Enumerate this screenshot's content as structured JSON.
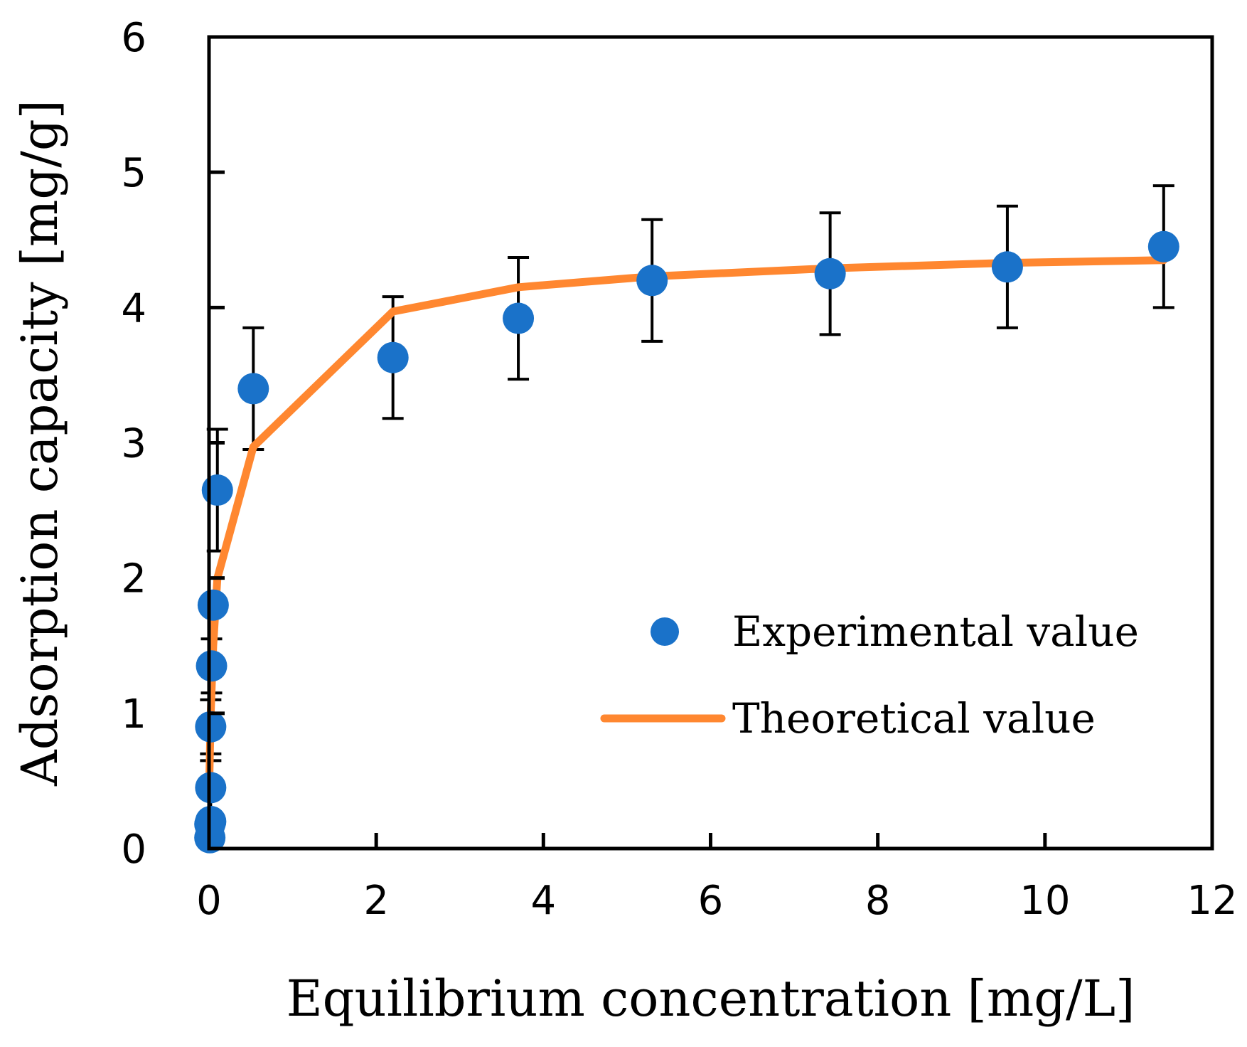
{
  "chart_data": {
    "type": "scatter",
    "title": "",
    "xlabel": "Equilibrium concentration [mg/L]",
    "ylabel": "Adsorption capacity [mg/g]",
    "xlim": [
      0,
      12
    ],
    "ylim": [
      0,
      6
    ],
    "x_ticks": [
      0,
      2,
      4,
      6,
      8,
      10,
      12
    ],
    "y_ticks": [
      0,
      1,
      2,
      3,
      4,
      5,
      6
    ],
    "grid": false,
    "legend_position": "center-right",
    "series": [
      {
        "name": "Experimental value",
        "kind": "scatter",
        "color": "#1a72c9",
        "x": [
          0.01,
          0.01,
          0.02,
          0.02,
          0.02,
          0.03,
          0.05,
          0.1,
          0.53,
          2.2,
          3.7,
          5.3,
          7.43,
          9.55,
          11.42
        ],
        "y": [
          0.08,
          0.18,
          0.2,
          0.45,
          0.9,
          1.35,
          1.8,
          2.65,
          3.4,
          3.63,
          3.92,
          4.2,
          4.25,
          4.3,
          4.45
        ],
        "error": [
          0,
          0,
          0,
          0.2,
          0.2,
          0.2,
          0,
          0.45,
          0.45,
          0.45,
          0.45,
          0.45,
          0.45,
          0.45,
          0.45
        ]
      },
      {
        "name": "Theoretical value",
        "kind": "line",
        "color": "#ff8730",
        "x": [
          0.0,
          0.02,
          0.05,
          0.1,
          0.53,
          2.2,
          3.7,
          5.3,
          7.43,
          9.55,
          11.42
        ],
        "y": [
          0.4,
          1.0,
          1.5,
          2.0,
          2.97,
          3.97,
          4.15,
          4.23,
          4.29,
          4.33,
          4.35
        ]
      }
    ]
  }
}
